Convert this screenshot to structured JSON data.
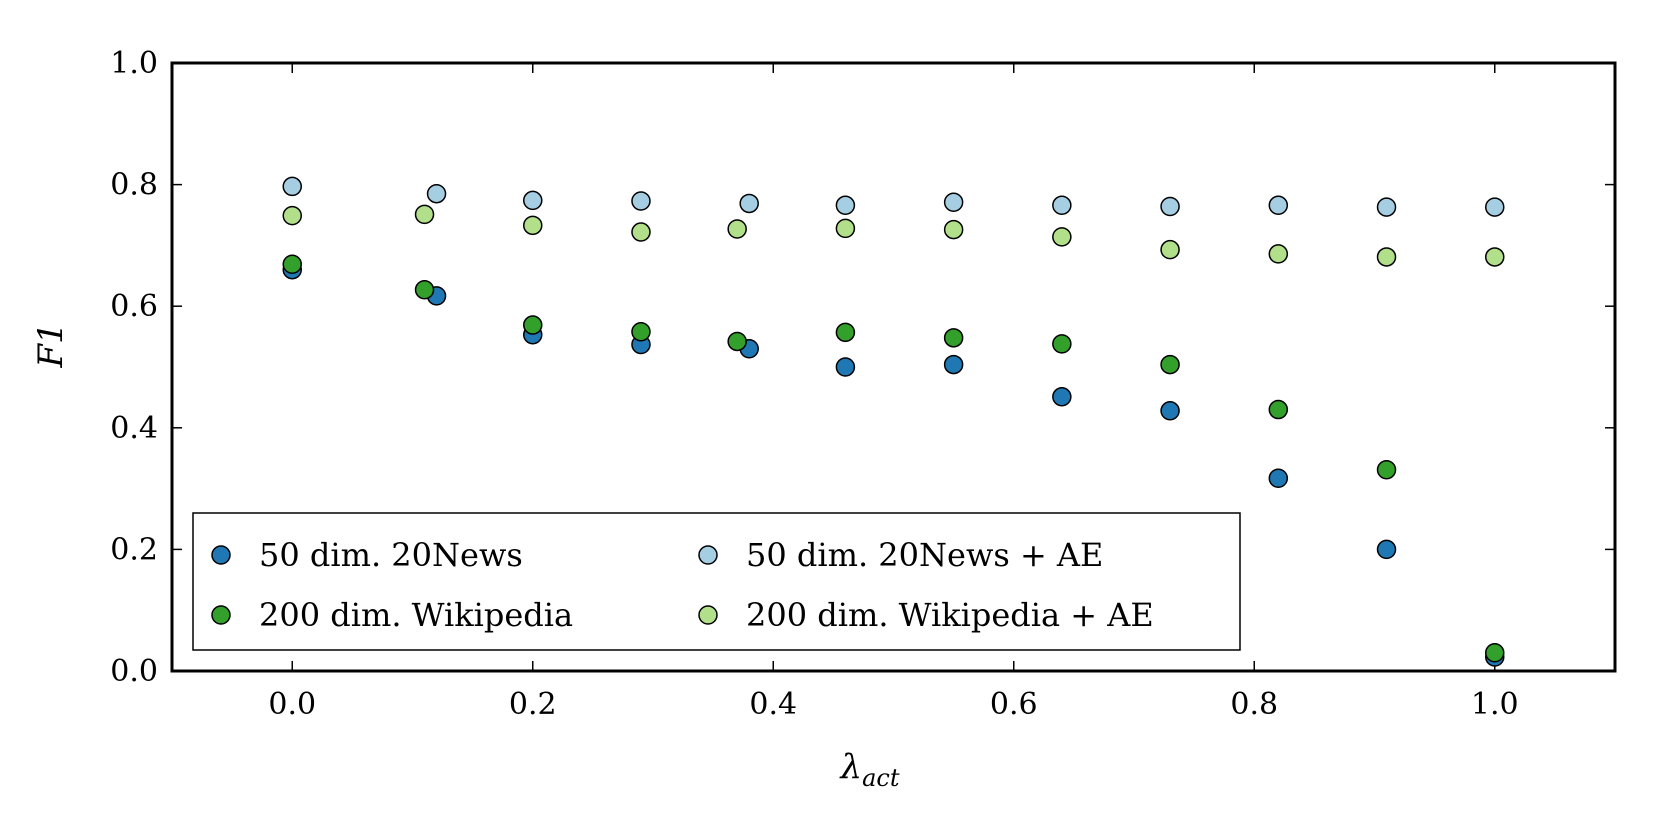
{
  "chart_data": {
    "type": "scatter",
    "title": "",
    "xlabel": {
      "main": "λ",
      "sub": "act"
    },
    "ylabel": "F1",
    "xlim": [
      -0.1,
      1.1
    ],
    "ylim": [
      0.0,
      1.0
    ],
    "xticks": [
      "0.0",
      "0.2",
      "0.4",
      "0.6",
      "0.8",
      "1.0"
    ],
    "yticks": [
      "0.0",
      "0.2",
      "0.4",
      "0.6",
      "0.8",
      "1.0"
    ],
    "grid": false,
    "legend_position": "lower-left",
    "series": [
      {
        "name": "50 dim. 20News",
        "color": "#1f78b4",
        "x": [
          0.0,
          0.12,
          0.2,
          0.29,
          0.38,
          0.46,
          0.55,
          0.64,
          0.73,
          0.82,
          0.91,
          1.0
        ],
        "y": [
          0.66,
          0.617,
          0.553,
          0.537,
          0.53,
          0.5,
          0.504,
          0.451,
          0.428,
          0.317,
          0.2,
          0.023
        ]
      },
      {
        "name": "200 dim. Wikipedia",
        "color": "#33a02c",
        "x": [
          0.0,
          0.11,
          0.2,
          0.29,
          0.37,
          0.46,
          0.55,
          0.64,
          0.73,
          0.82,
          0.91,
          1.0
        ],
        "y": [
          0.669,
          0.627,
          0.569,
          0.558,
          0.542,
          0.557,
          0.548,
          0.538,
          0.504,
          0.43,
          0.331,
          0.03
        ]
      },
      {
        "name": "50 dim. 20News + AE",
        "color": "#a6cee3",
        "x": [
          0.0,
          0.12,
          0.2,
          0.29,
          0.38,
          0.46,
          0.55,
          0.64,
          0.73,
          0.82,
          0.91,
          1.0
        ],
        "y": [
          0.797,
          0.785,
          0.774,
          0.773,
          0.769,
          0.766,
          0.771,
          0.766,
          0.764,
          0.766,
          0.763,
          0.763
        ]
      },
      {
        "name": "200 dim. Wikipedia + AE",
        "color": "#b2df8a",
        "x": [
          0.0,
          0.11,
          0.2,
          0.29,
          0.37,
          0.46,
          0.55,
          0.64,
          0.73,
          0.82,
          0.91,
          1.0
        ],
        "y": [
          0.749,
          0.751,
          0.733,
          0.722,
          0.727,
          0.728,
          0.726,
          0.714,
          0.693,
          0.686,
          0.681,
          0.681
        ]
      }
    ]
  }
}
